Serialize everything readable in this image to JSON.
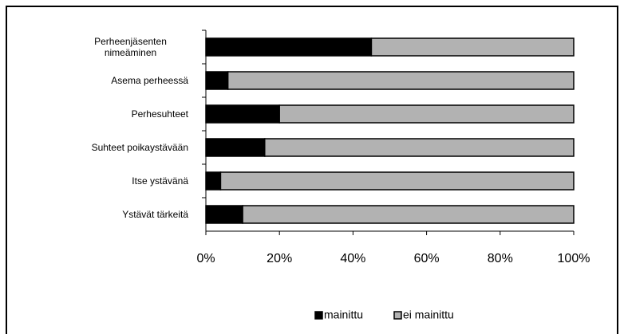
{
  "chart_data": {
    "type": "stacked-bar-horizontal",
    "categories": [
      "Perheenjäsenten nimeäminen",
      "Asema perheessä",
      "Perhesuhteet",
      "Suhteet poikaystävään",
      "Itse ystävänä",
      "Ystävät tärkeitä"
    ],
    "series": [
      {
        "name": "mainittu",
        "color": "#000000",
        "values": [
          45,
          6,
          20,
          16,
          4,
          10
        ]
      },
      {
        "name": "ei mainittu",
        "color": "#b2b2b2",
        "values": [
          55,
          94,
          80,
          84,
          96,
          90
        ]
      }
    ],
    "xlim": [
      0,
      100
    ],
    "xticks": [
      {
        "value": 0,
        "label": "0%"
      },
      {
        "value": 20,
        "label": "20%"
      },
      {
        "value": 40,
        "label": "40%"
      },
      {
        "value": 60,
        "label": "60%"
      },
      {
        "value": 80,
        "label": "80%"
      },
      {
        "value": 100,
        "label": "100%"
      }
    ],
    "legend": "bottom"
  }
}
